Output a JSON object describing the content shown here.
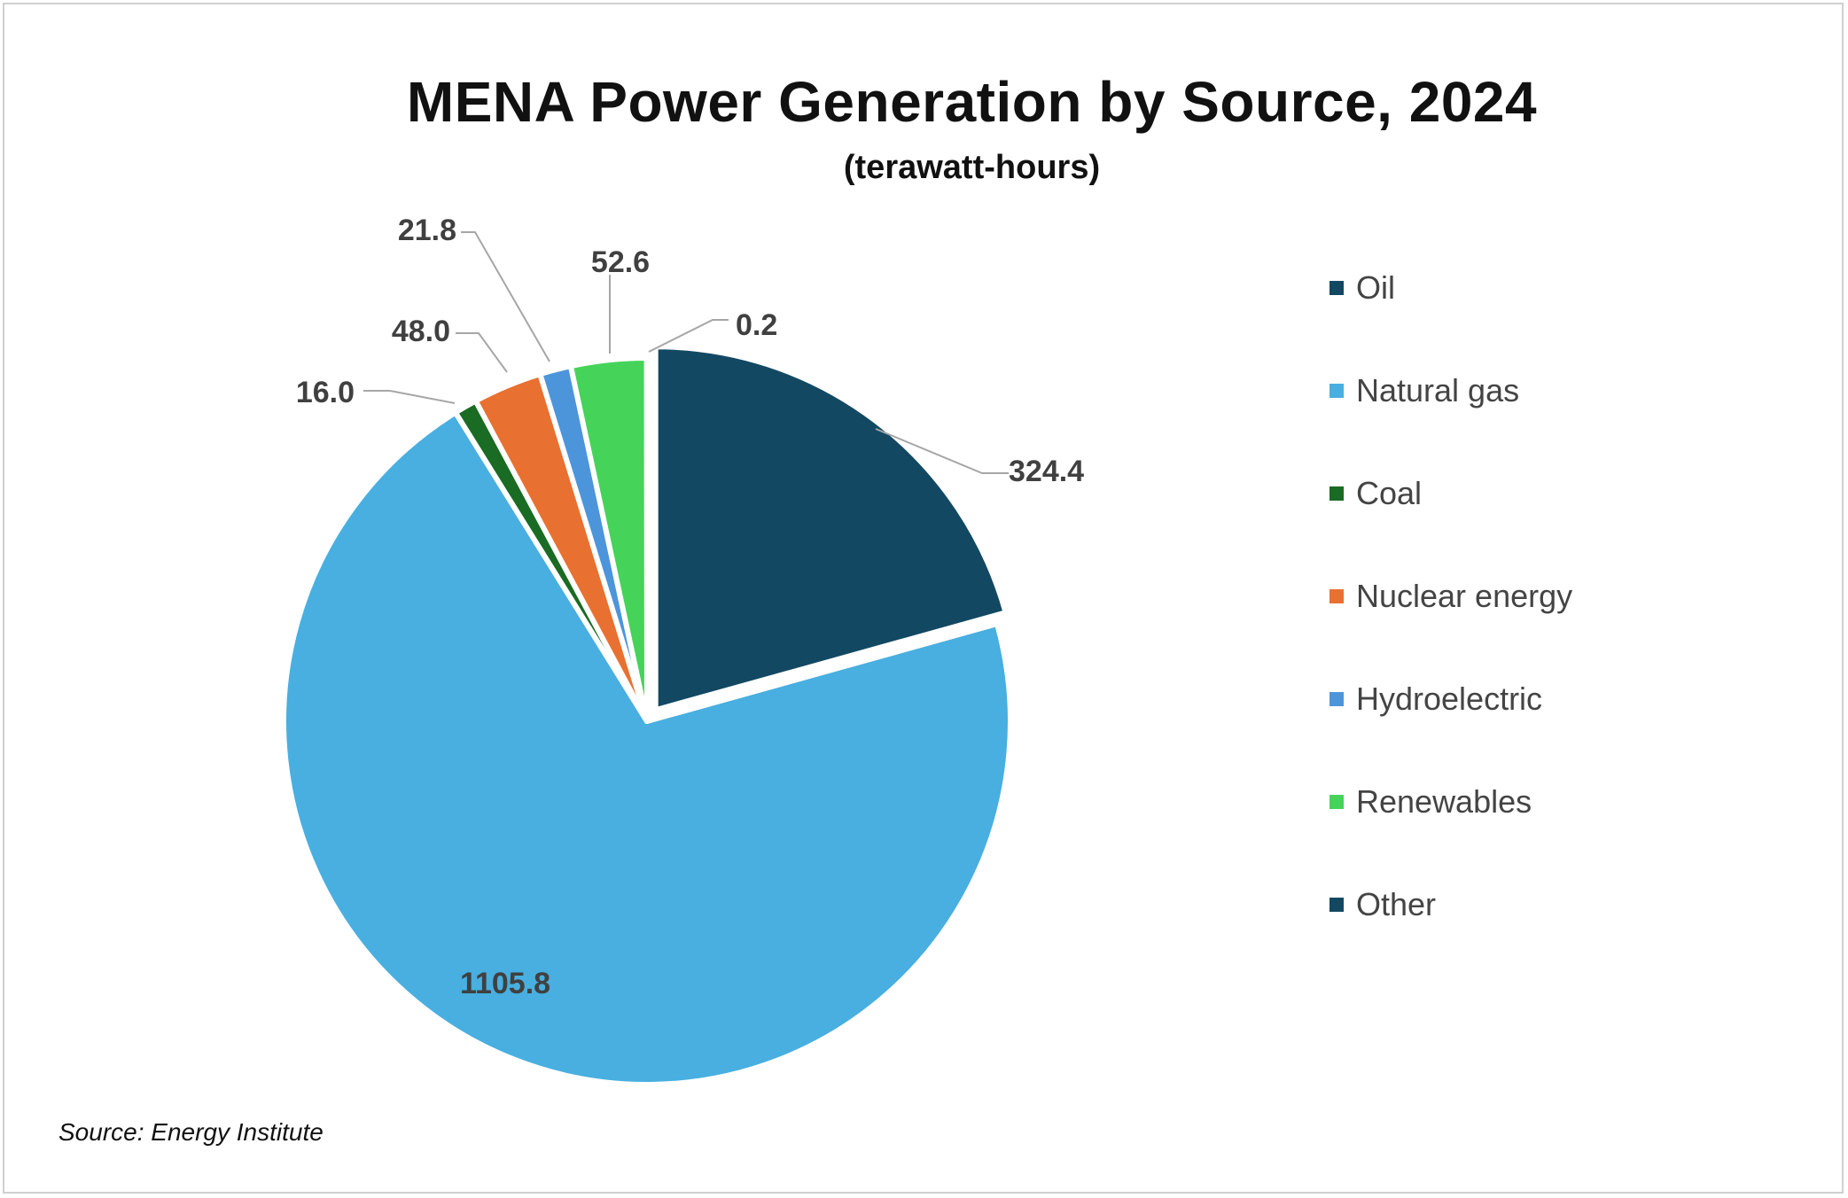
{
  "chart_data": {
    "type": "pie",
    "title": "MENA Power Generation by Source, 2024",
    "subtitle": "(terawatt-hours)",
    "unit": "terawatt-hours",
    "start_angle": "12 o'clock, clockwise",
    "legend_position": "right",
    "slices": [
      {
        "label": "Oil",
        "value": 324.4,
        "display": "324.4",
        "color": "#124862",
        "exploded": true
      },
      {
        "label": "Natural gas",
        "value": 1105.8,
        "display": "1105.8",
        "color": "#48AFE0",
        "exploded": false
      },
      {
        "label": "Coal",
        "value": 16.0,
        "display": "16.0",
        "color": "#1A6B23",
        "exploded": false
      },
      {
        "label": "Nuclear energy",
        "value": 48.0,
        "display": "48.0",
        "color": "#E87131",
        "exploded": false
      },
      {
        "label": "Hydroelectric",
        "value": 21.8,
        "display": "21.8",
        "color": "#4C95DB",
        "exploded": false
      },
      {
        "label": "Renewables",
        "value": 52.6,
        "display": "52.6",
        "color": "#45D35A",
        "exploded": false
      },
      {
        "label": "Other",
        "value": 0.2,
        "display": "0.2",
        "color": "#124862",
        "exploded": false
      }
    ],
    "source": "Source: Energy Institute"
  }
}
